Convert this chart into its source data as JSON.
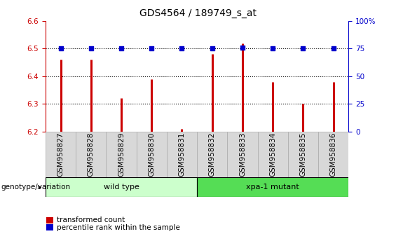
{
  "title": "GDS4564 / 189749_s_at",
  "samples": [
    "GSM958827",
    "GSM958828",
    "GSM958829",
    "GSM958830",
    "GSM958831",
    "GSM958832",
    "GSM958833",
    "GSM958834",
    "GSM958835",
    "GSM958836"
  ],
  "transformed_counts": [
    6.46,
    6.46,
    6.32,
    6.39,
    6.21,
    6.48,
    6.52,
    6.38,
    6.3,
    6.38
  ],
  "percentile_y_vals": [
    6.5,
    6.5,
    6.5,
    6.5,
    6.5,
    6.5,
    6.505,
    6.5,
    6.5,
    6.5
  ],
  "ylim": [
    6.2,
    6.6
  ],
  "right_ylim": [
    0,
    100
  ],
  "right_yticks": [
    0,
    25,
    50,
    75,
    100
  ],
  "left_yticks": [
    6.2,
    6.3,
    6.4,
    6.5,
    6.6
  ],
  "bar_color": "#cc0000",
  "dot_color": "#0000cc",
  "groups": [
    {
      "label": "wild type",
      "start": 0,
      "end": 5,
      "color": "#ccffcc"
    },
    {
      "label": "xpa-1 mutant",
      "start": 5,
      "end": 10,
      "color": "#55dd55"
    }
  ],
  "group_label": "genotype/variation",
  "legend_bar_label": "transformed count",
  "legend_dot_label": "percentile rank within the sample",
  "title_fontsize": 10,
  "tick_fontsize": 7.5,
  "label_fontsize": 8,
  "axis_color_left": "#cc0000",
  "axis_color_right": "#0000cc",
  "dotted_line_y": [
    6.3,
    6.4,
    6.5
  ],
  "n_samples": 10,
  "gray_bg": "#d8d8d8",
  "cell_edge": "#aaaaaa"
}
